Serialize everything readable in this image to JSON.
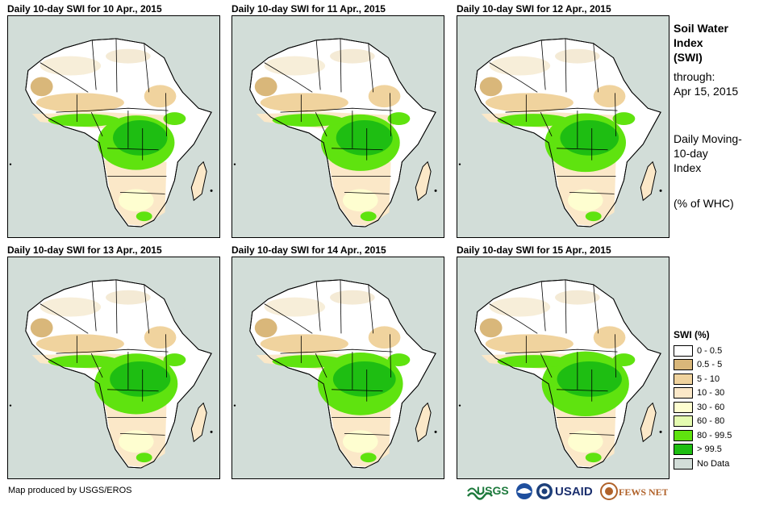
{
  "panels": [
    {
      "title": "Daily 10-day SWI for 10 Apr., 2015"
    },
    {
      "title": "Daily 10-day SWI for 11 Apr., 2015"
    },
    {
      "title": "Daily 10-day SWI for 12 Apr., 2015"
    },
    {
      "title": "Daily 10-day SWI for 13 Apr., 2015"
    },
    {
      "title": "Daily 10-day SWI for 14 Apr., 2015"
    },
    {
      "title": "Daily 10-day SWI for 15 Apr., 2015"
    }
  ],
  "side": {
    "title_1": "Soil Water",
    "title_2": "Index",
    "title_3": "(SWI)",
    "through_label": "through:",
    "through_date": "Apr 15, 2015",
    "desc_1": "Daily Moving-",
    "desc_2": "10-day",
    "desc_3": "Index",
    "units": "(% of WHC)"
  },
  "legend": {
    "title": "SWI (%)",
    "items": [
      {
        "label": "0 - 0.5",
        "color": "#ffffff"
      },
      {
        "label": "0.5 - 5",
        "color": "#d9b77a"
      },
      {
        "label": "5 - 10",
        "color": "#f0d39e"
      },
      {
        "label": "10 - 30",
        "color": "#fbe8c8"
      },
      {
        "label": "30 - 60",
        "color": "#fefed0"
      },
      {
        "label": "60 - 80",
        "color": "#e4fbb0"
      },
      {
        "label": "80 - 99.5",
        "color": "#5fe30f"
      },
      {
        "label": "> 99.5",
        "color": "#1ebe12"
      },
      {
        "label": "No Data",
        "color": "#d2ddd8"
      }
    ]
  },
  "credit": "Map produced by USGS/EROS",
  "logos": {
    "usgs": "USGS",
    "usaid": "USAID",
    "fewsnet": "FEWS NET"
  }
}
